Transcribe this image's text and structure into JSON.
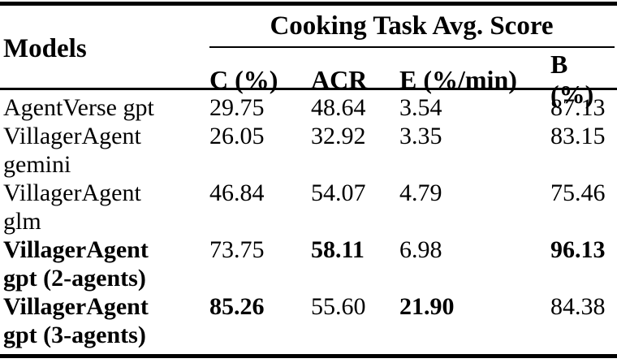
{
  "colors": {
    "text": "#000000",
    "background": "#ffffff",
    "rule": "#000000"
  },
  "table": {
    "models_header": "Models",
    "group_header": "Cooking Task Avg. Score",
    "columns": [
      "C (%)",
      "ACR",
      "E (%/min)",
      "B (%)"
    ],
    "rows": [
      {
        "model_line1": "AgentVerse gpt",
        "model_line2": "",
        "c": "29.75",
        "acr": "48.64",
        "e": "3.54",
        "b": "87.13"
      },
      {
        "model_line1": "VillagerAgent",
        "model_line2": "gemini",
        "c": "26.05",
        "acr": "32.92",
        "e": "3.35",
        "b": "83.15"
      },
      {
        "model_line1": "VillagerAgent",
        "model_line2": "glm",
        "c": "46.84",
        "acr": "54.07",
        "e": "4.79",
        "b": "75.46"
      },
      {
        "model_line1": "VillagerAgent",
        "model_line2": "gpt (2-agents)",
        "c": "73.75",
        "acr": "58.11",
        "e": "6.98",
        "b": "96.13"
      },
      {
        "model_line1": "VillagerAgent",
        "model_line2": "gpt (3-agents)",
        "c": "85.26",
        "acr": "55.60",
        "e": "21.90",
        "b": "84.38"
      }
    ]
  }
}
